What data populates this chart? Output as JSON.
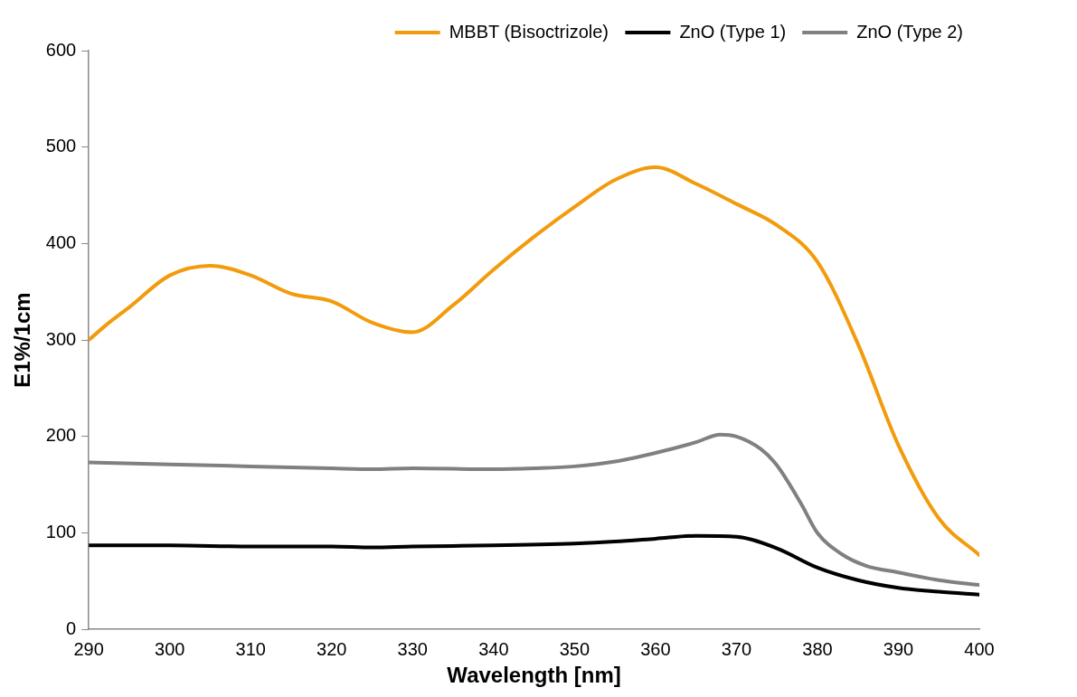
{
  "chart_data": {
    "type": "line",
    "xlabel": "Wavelength [nm]",
    "ylabel": "E1%/1cm",
    "xlim": [
      290,
      400
    ],
    "xticks": [
      290,
      300,
      310,
      320,
      330,
      340,
      350,
      360,
      370,
      380,
      390,
      400
    ],
    "ylim": [
      0,
      600
    ],
    "yticks": [
      0,
      100,
      200,
      300,
      400,
      500,
      600
    ],
    "grid": false,
    "legend": "top right",
    "marker": "none",
    "line_style": "solid",
    "series": [
      {
        "name": "MBBT (Bisoctrizole)",
        "color": "#f29b0c",
        "x": [
          290,
          292.5,
          295,
          300,
          305,
          310,
          315,
          320,
          325,
          330,
          335,
          340,
          345,
          350,
          355,
          360,
          365,
          370,
          375,
          380,
          385,
          390,
          395,
          400
        ],
        "values": [
          300,
          318,
          334,
          367,
          377,
          367,
          348,
          340,
          318,
          308,
          336,
          373,
          407,
          438,
          466,
          479,
          462,
          441,
          419,
          381,
          296,
          191,
          115,
          77
        ]
      },
      {
        "name": "ZnO (Type 1)",
        "color": "#000000",
        "x": [
          290,
          300,
          310,
          320,
          325,
          330,
          340,
          350,
          355,
          360,
          365,
          370,
          375,
          380,
          385,
          390,
          395,
          400
        ],
        "values": [
          87,
          87,
          86,
          86,
          85,
          86,
          87,
          89,
          91,
          94,
          97,
          96,
          84,
          64,
          51,
          43,
          39,
          36
        ]
      },
      {
        "name": "ZnO (Type 2)",
        "color": "#808080",
        "x": [
          290,
          300,
          310,
          320,
          325,
          330,
          340,
          345,
          350,
          355,
          360,
          365,
          368,
          370,
          373,
          375,
          378,
          380,
          383,
          386,
          390,
          395,
          400
        ],
        "values": [
          173,
          171,
          169,
          167,
          166,
          167,
          166,
          167,
          169,
          174,
          183,
          194,
          202,
          200,
          187,
          170,
          130,
          100,
          78,
          66,
          59,
          51,
          46
        ]
      }
    ]
  }
}
